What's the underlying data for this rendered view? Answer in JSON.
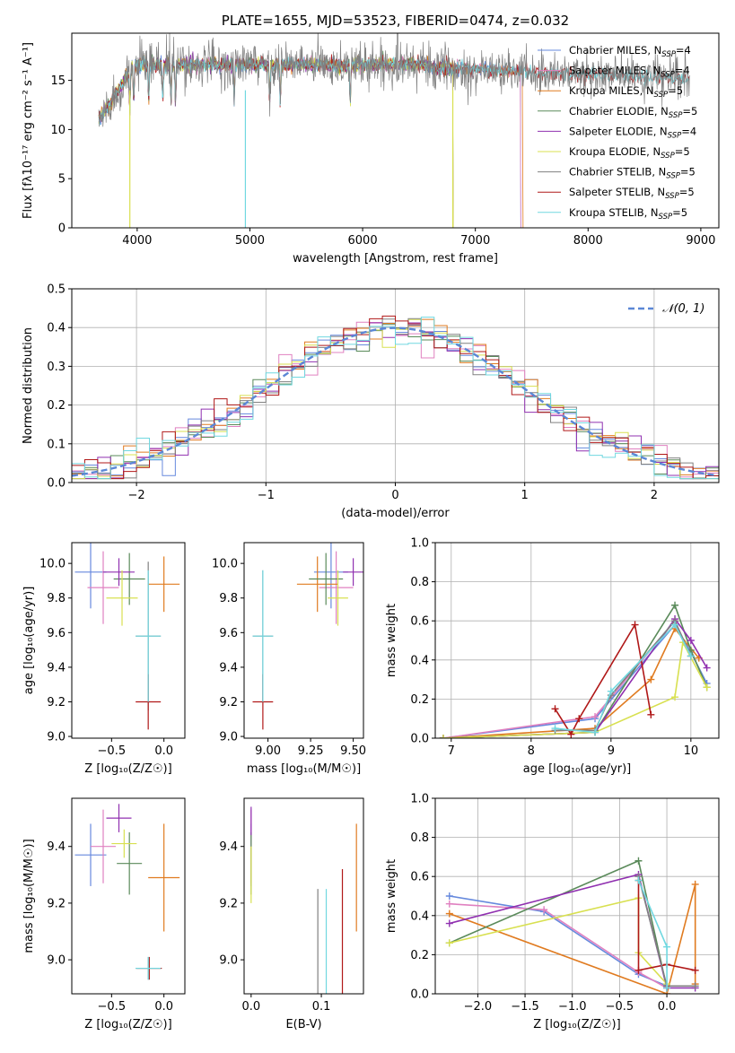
{
  "chart_data": [
    {
      "id": "spectrum",
      "type": "line",
      "title": "PLATE=1655, MJD=53523, FIBERID=0474, z=0.032",
      "xlabel": "wavelength [Angstrom, rest frame]",
      "ylabel": "Flux [fλ10⁻¹⁷ erg cm⁻² s⁻¹ A⁻¹]",
      "xlim": [
        3420,
        9160
      ],
      "ylim": [
        0,
        19.8
      ],
      "xticks": [
        4000,
        5000,
        6000,
        7000,
        8000,
        9000
      ],
      "yticks": [
        0,
        5,
        10,
        15
      ],
      "data_note": "observed spectrum approx. flux 16.5 +/- noise; model ranges per series",
      "series": [
        {
          "name": "Chabrier MILES, N",
          "sub": "SSP",
          "suffix": "=4",
          "color": "#6689dd",
          "range": [
            3660,
            7400
          ]
        },
        {
          "name": "Salpeter MILES, N",
          "sub": "SSP",
          "suffix": "=4",
          "color": "#e080c0",
          "range": [
            3660,
            7400
          ]
        },
        {
          "name": "Kroupa MILES, N",
          "sub": "SSP",
          "suffix": "=5",
          "color": "#e07b20",
          "range": [
            3660,
            7420
          ]
        },
        {
          "name": "Chabrier ELODIE, N",
          "sub": "SSP",
          "suffix": "=5",
          "color": "#5a8a5a",
          "range": [
            3660,
            6800
          ]
        },
        {
          "name": "Salpeter ELODIE, N",
          "sub": "SSP",
          "suffix": "=4",
          "color": "#9030b0",
          "range": [
            3660,
            6800
          ]
        },
        {
          "name": "Kroupa ELODIE, N",
          "sub": "SSP",
          "suffix": "=5",
          "color": "#d8e050",
          "range": [
            3660,
            6800
          ]
        },
        {
          "name": "Chabrier STELIB, N",
          "sub": "SSP",
          "suffix": "=5",
          "color": "#808080",
          "range": [
            3660,
            8900
          ]
        },
        {
          "name": "Salpeter STELIB, N",
          "sub": "SSP",
          "suffix": "=5",
          "color": "#b01818",
          "range": [
            3660,
            8900
          ]
        },
        {
          "name": "Kroupa STELIB, N",
          "sub": "SSP",
          "suffix": "=5",
          "color": "#70d8e0",
          "range": [
            3660,
            8900
          ]
        }
      ]
    },
    {
      "id": "residuals",
      "type": "histogram",
      "xlabel": "(data-model)/error",
      "ylabel": "Normed distribution",
      "xlim": [
        -2.5,
        2.5
      ],
      "ylim": [
        0,
        0.5
      ],
      "xticks": [
        -2,
        -1,
        0,
        1,
        2
      ],
      "yticks": [
        0.0,
        0.1,
        0.2,
        0.3,
        0.4,
        0.5
      ],
      "legend": "𝒩(0, 1)",
      "legend_pos": "top-right",
      "bin_width": 0.1,
      "gaussian": {
        "mu": 0,
        "sigma": 1
      }
    },
    {
      "id": "age_vs_Z",
      "type": "errorbar",
      "xlabel": "Z [log₁₀(Z/Z☉)]",
      "ylabel": "age  [log₁₀(age/yr)]",
      "xlim": [
        -0.88,
        0.2
      ],
      "ylim": [
        8.99,
        10.12
      ],
      "xticks": [
        -0.5,
        0.0
      ],
      "yticks": [
        9.0,
        9.2,
        9.4,
        9.6,
        9.8,
        10.0
      ],
      "points": [
        {
          "x": -0.7,
          "xerr": 0.15,
          "y": 9.95,
          "yerr": 0.21
        },
        {
          "x": -0.58,
          "xerr": 0.15,
          "y": 9.86,
          "yerr": 0.21
        },
        {
          "x": 0.0,
          "xerr": 0.15,
          "y": 9.88,
          "yerr": 0.16
        },
        {
          "x": -0.33,
          "xerr": 0.15,
          "y": 9.91,
          "yerr": 0.15
        },
        {
          "x": -0.43,
          "xerr": 0.15,
          "y": 9.95,
          "yerr": 0.08
        },
        {
          "x": -0.4,
          "xerr": 0.15,
          "y": 9.8,
          "yerr": 0.16
        },
        {
          "x": -0.15,
          "xerr": 0.12,
          "y": 9.58,
          "yerr": 0.43
        },
        {
          "x": -0.15,
          "xerr": 0.12,
          "y": 9.2,
          "yerr": 0.16
        },
        {
          "x": -0.15,
          "xerr": 0.12,
          "y": 9.58,
          "yerr": 0.38
        }
      ]
    },
    {
      "id": "age_vs_mass",
      "type": "errorbar",
      "xlabel": "mass [log₁₀(M/M☉)]",
      "ylabel": "",
      "xlim": [
        8.86,
        9.56
      ],
      "ylim": [
        8.99,
        10.12
      ],
      "xticks": [
        9.0,
        9.25,
        9.5
      ],
      "yticks": [
        9.0,
        9.2,
        9.4,
        9.6,
        9.8,
        10.0
      ],
      "points": [
        {
          "x": 9.37,
          "xerr": 0.1,
          "y": 9.95,
          "yerr": 0.21
        },
        {
          "x": 9.4,
          "xerr": 0.1,
          "y": 9.86,
          "yerr": 0.21
        },
        {
          "x": 9.29,
          "xerr": 0.12,
          "y": 9.88,
          "yerr": 0.16
        },
        {
          "x": 9.34,
          "xerr": 0.1,
          "y": 9.91,
          "yerr": 0.15
        },
        {
          "x": 9.5,
          "xerr": 0.06,
          "y": 9.95,
          "yerr": 0.08
        },
        {
          "x": 9.41,
          "xerr": 0.06,
          "y": 9.8,
          "yerr": 0.16
        },
        {
          "x": 8.97,
          "xerr": 0.06,
          "y": 9.58,
          "yerr": 0.38
        },
        {
          "x": 8.97,
          "xerr": 0.06,
          "y": 9.2,
          "yerr": 0.16
        },
        {
          "x": 8.97,
          "xerr": 0.06,
          "y": 9.58,
          "yerr": 0.38
        }
      ]
    },
    {
      "id": "weight_vs_age",
      "type": "line",
      "xlabel": "age  [log₁₀(age/yr)]",
      "ylabel": "mass weight",
      "xlim": [
        6.8,
        10.35
      ],
      "ylim": [
        0,
        1.0
      ],
      "xticks": [
        7,
        8,
        9,
        10
      ],
      "yticks": [
        0.0,
        0.2,
        0.4,
        0.6,
        0.8,
        1.0
      ],
      "series": [
        {
          "color": "#6689dd",
          "points": [
            [
              6.9,
              0.0
            ],
            [
              8.8,
              0.1
            ],
            [
              9.8,
              0.58
            ],
            [
              10.0,
              0.44
            ],
            [
              10.2,
              0.28
            ]
          ]
        },
        {
          "color": "#e080c0",
          "points": [
            [
              6.9,
              0.0
            ],
            [
              8.8,
              0.11
            ],
            [
              9.8,
              0.6
            ],
            [
              10.0,
              0.42
            ]
          ]
        },
        {
          "color": "#e07b20",
          "points": [
            [
              6.9,
              0.0
            ],
            [
              8.8,
              0.05
            ],
            [
              9.5,
              0.3
            ],
            [
              9.8,
              0.56
            ],
            [
              10.1,
              0.41
            ]
          ]
        },
        {
          "color": "#5a8a5a",
          "points": [
            [
              6.9,
              0.0
            ],
            [
              8.8,
              0.03
            ],
            [
              9.8,
              0.68
            ],
            [
              10.0,
              0.45
            ],
            [
              10.2,
              0.26
            ]
          ]
        },
        {
          "color": "#9030b0",
          "points": [
            [
              6.9,
              0.0
            ],
            [
              8.8,
              0.03
            ],
            [
              9.8,
              0.61
            ],
            [
              10.0,
              0.5
            ],
            [
              10.2,
              0.36
            ]
          ]
        },
        {
          "color": "#d8e050",
          "points": [
            [
              6.9,
              0.0
            ],
            [
              8.8,
              0.03
            ],
            [
              9.8,
              0.21
            ],
            [
              9.9,
              0.49
            ],
            [
              10.2,
              0.26
            ]
          ]
        },
        {
          "color": "#b01818",
          "points": [
            [
              8.3,
              0.15
            ],
            [
              8.5,
              0.02
            ],
            [
              8.6,
              0.1
            ],
            [
              9.3,
              0.58
            ],
            [
              9.5,
              0.12
            ]
          ]
        },
        {
          "color": "#808080",
          "points": [
            [
              8.3,
              0.04
            ],
            [
              8.8,
              0.04
            ],
            [
              9.0,
              0.22
            ],
            [
              9.8,
              0.6
            ],
            [
              10.0,
              0.42
            ]
          ]
        },
        {
          "color": "#70d8e0",
          "points": [
            [
              8.3,
              0.05
            ],
            [
              8.8,
              0.03
            ],
            [
              9.0,
              0.24
            ],
            [
              9.8,
              0.58
            ],
            [
              10.0,
              0.42
            ]
          ]
        }
      ]
    },
    {
      "id": "mass_vs_Z",
      "type": "errorbar",
      "xlabel": "Z [log₁₀(Z/Z☉)]",
      "ylabel": "mass [log₁₀(M/M☉)]",
      "xlim": [
        -0.88,
        0.2
      ],
      "ylim": [
        8.88,
        9.57
      ],
      "xticks": [
        -0.5,
        0.0
      ],
      "yticks": [
        9.0,
        9.2,
        9.4
      ],
      "points": [
        {
          "x": -0.7,
          "xerr": 0.15,
          "y": 9.37,
          "yerr": 0.11
        },
        {
          "x": -0.58,
          "xerr": 0.12,
          "y": 9.4,
          "yerr": 0.13
        },
        {
          "x": 0.0,
          "xerr": 0.15,
          "y": 9.29,
          "yerr": 0.19
        },
        {
          "x": -0.33,
          "xerr": 0.12,
          "y": 9.34,
          "yerr": 0.11
        },
        {
          "x": -0.43,
          "xerr": 0.12,
          "y": 9.5,
          "yerr": 0.05
        },
        {
          "x": -0.38,
          "xerr": 0.12,
          "y": 9.41,
          "yerr": 0.05
        },
        {
          "x": -0.15,
          "xerr": 0.12,
          "y": 8.97,
          "yerr": 0.04
        },
        {
          "x": -0.14,
          "xerr": 0.12,
          "y": 8.97,
          "yerr": 0.04
        },
        {
          "x": -0.15,
          "xerr": 0.12,
          "y": 8.97,
          "yerr": 0.04
        }
      ]
    },
    {
      "id": "mass_vs_ebv",
      "type": "errorbar",
      "xlabel": "E(B-V)",
      "ylabel": "",
      "xlim": [
        -0.01,
        0.16
      ],
      "ylim": [
        8.88,
        9.57
      ],
      "xticks": [
        0.0,
        0.1
      ],
      "yticks": [
        9.0,
        9.2,
        9.4
      ],
      "points": [
        {
          "x": 0.0,
          "xerr": 0,
          "y": 9.37,
          "yerr": 0.11
        },
        {
          "x": 0.0,
          "xerr": 0,
          "y": 9.4,
          "yerr": 0.13
        },
        {
          "x": 0.15,
          "xerr": 0,
          "y": 9.29,
          "yerr": 0.19
        },
        {
          "x": 0.0,
          "xerr": 0,
          "y": 9.34,
          "yerr": 0.11
        },
        {
          "x": 0.0,
          "xerr": 0,
          "y": 9.49,
          "yerr": 0.05
        },
        {
          "x": 0.0,
          "xerr": 0,
          "y": 9.3,
          "yerr": 0.1
        },
        {
          "x": 0.095,
          "xerr": 0,
          "y": 9.03,
          "yerr": 0.22
        },
        {
          "x": 0.13,
          "xerr": 0,
          "y": 9.08,
          "yerr": 0.24
        },
        {
          "x": 0.107,
          "xerr": 0,
          "y": 9.03,
          "yerr": 0.22
        }
      ]
    },
    {
      "id": "weight_vs_Z",
      "type": "line",
      "xlabel": "Z [log₁₀(Z/Z☉)]",
      "ylabel": "mass weight",
      "xlim": [
        -2.45,
        0.55
      ],
      "ylim": [
        0,
        1.0
      ],
      "xticks": [
        -2.0,
        -1.5,
        -1.0,
        -0.5,
        0.0
      ],
      "yticks": [
        0.0,
        0.2,
        0.4,
        0.6,
        0.8,
        1.0
      ],
      "series": [
        {
          "color": "#6689dd",
          "points": [
            [
              -2.3,
              0.5
            ],
            [
              -1.3,
              0.42
            ],
            [
              -0.3,
              0.1
            ],
            [
              0.0,
              0.04
            ]
          ]
        },
        {
          "color": "#e080c0",
          "points": [
            [
              -2.3,
              0.46
            ],
            [
              -1.3,
              0.43
            ],
            [
              -0.3,
              0.11
            ],
            [
              0.0,
              0.03
            ]
          ]
        },
        {
          "color": "#e07b20",
          "points": [
            [
              -2.3,
              0.41
            ],
            [
              0.0,
              0.0
            ],
            [
              0.3,
              0.56
            ],
            [
              0.3,
              0.05
            ]
          ]
        },
        {
          "color": "#5a8a5a",
          "points": [
            [
              -2.3,
              0.26
            ],
            [
              -0.3,
              0.68
            ],
            [
              0.0,
              0.03
            ]
          ]
        },
        {
          "color": "#9030b0",
          "points": [
            [
              -2.3,
              0.36
            ],
            [
              -0.3,
              0.61
            ],
            [
              0.0,
              0.03
            ],
            [
              0.3,
              0.03
            ]
          ]
        },
        {
          "color": "#d8e050",
          "points": [
            [
              -2.3,
              0.26
            ],
            [
              -0.3,
              0.49
            ],
            [
              -0.3,
              0.21
            ],
            [
              0.0,
              0.05
            ]
          ]
        },
        {
          "color": "#b01818",
          "points": [
            [
              -0.3,
              0.58
            ],
            [
              -0.3,
              0.12
            ],
            [
              0.0,
              0.15
            ],
            [
              0.3,
              0.12
            ]
          ]
        },
        {
          "color": "#808080",
          "points": [
            [
              -0.3,
              0.6
            ],
            [
              0.0,
              0.04
            ],
            [
              0.3,
              0.04
            ]
          ]
        },
        {
          "color": "#70d8e0",
          "points": [
            [
              -0.3,
              0.58
            ],
            [
              0.0,
              0.24
            ],
            [
              0.0,
              0.03
            ]
          ]
        }
      ]
    }
  ]
}
